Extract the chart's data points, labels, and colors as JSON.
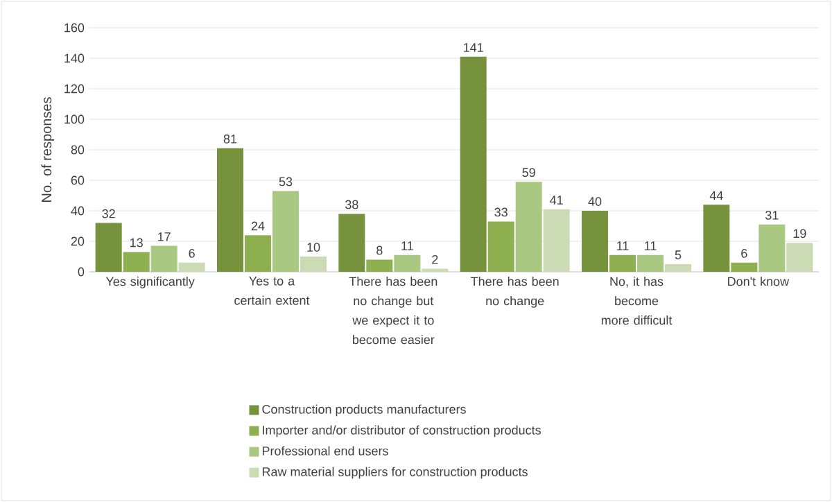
{
  "chart_data": {
    "type": "bar",
    "ylabel": "No. of responses",
    "categories": [
      "Yes significantly",
      "Yes to a certain extent",
      "There has been no change but we expect it to become easier",
      "There has been no change",
      "No, it has become more difficult",
      "Don't know"
    ],
    "series": [
      {
        "name": "Construction products manufacturers",
        "color": "#76923c",
        "values": [
          32,
          81,
          38,
          141,
          40,
          44
        ]
      },
      {
        "name": "Importer and/or distributor of construction products",
        "color": "#8fb050",
        "values": [
          13,
          24,
          8,
          33,
          11,
          6
        ]
      },
      {
        "name": "Professional end users",
        "color": "#a9c983",
        "values": [
          17,
          53,
          11,
          59,
          11,
          31
        ]
      },
      {
        "name": "Raw material suppliers for construction products",
        "color": "#cbdcb4",
        "values": [
          6,
          10,
          2,
          41,
          5,
          19
        ]
      }
    ],
    "ylim": [
      0,
      160
    ],
    "yticks": [
      0,
      20,
      40,
      60,
      80,
      100,
      120,
      140,
      160
    ],
    "grid": "y",
    "legend": "bottom",
    "data_labels": true
  }
}
